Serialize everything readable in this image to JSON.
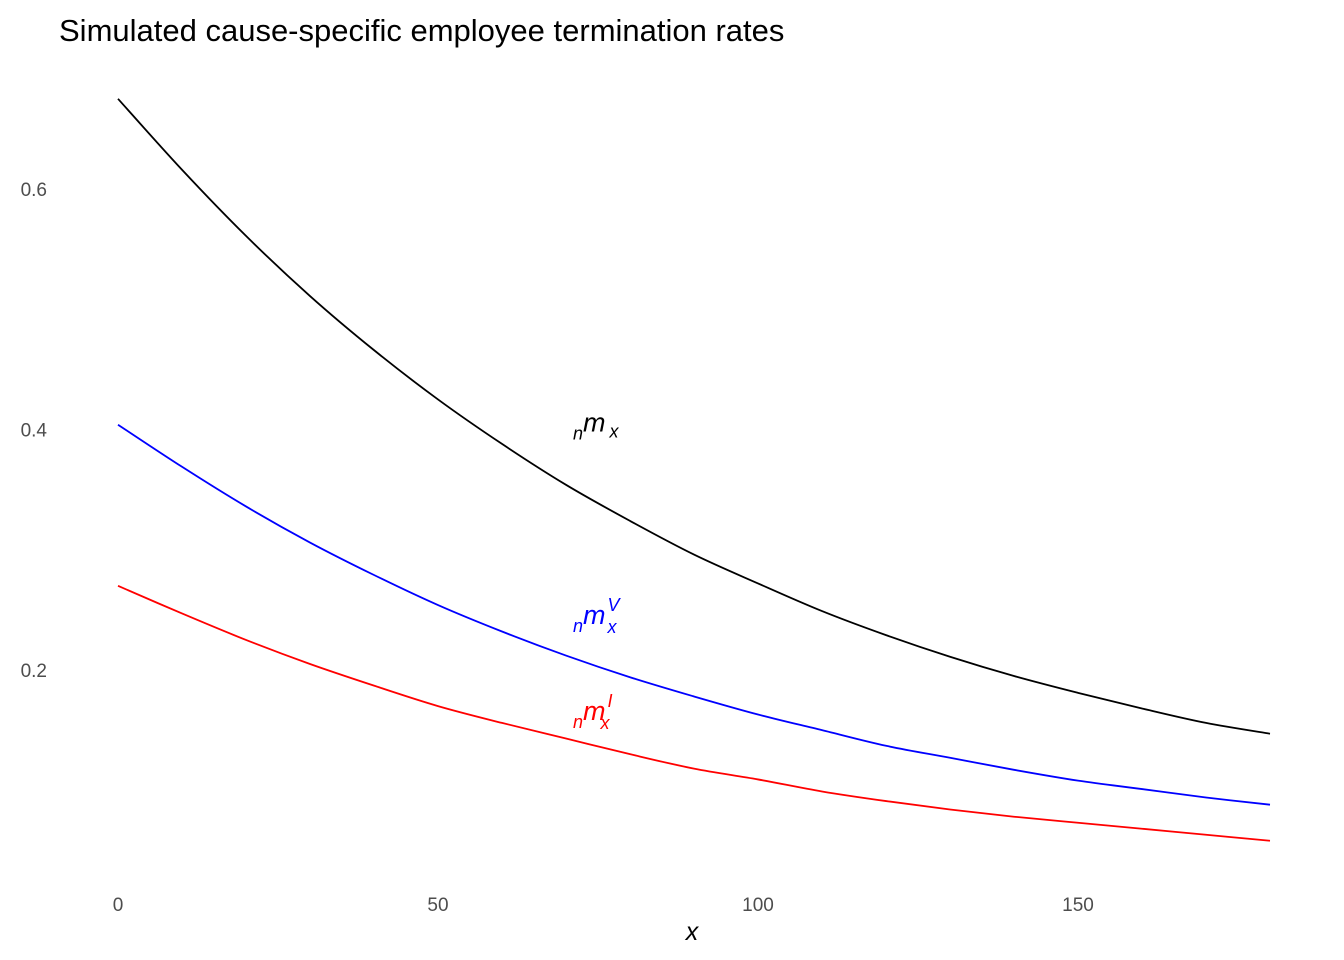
{
  "chart_data": {
    "type": "line",
    "title": "Simulated cause-specific employee termination rates",
    "xlabel": "x",
    "ylabel": "",
    "xlim": [
      0,
      180
    ],
    "ylim": [
      0.05,
      0.7
    ],
    "x_ticks": [
      0,
      50,
      100,
      150
    ],
    "x_tick_labels": [
      "0",
      "50",
      "100",
      "150"
    ],
    "y_ticks": [
      0.2,
      0.4,
      0.6
    ],
    "y_tick_labels": [
      "0.2",
      "0.4",
      "0.6"
    ],
    "grid": false,
    "legend": "none",
    "x": [
      0,
      10,
      20,
      30,
      40,
      50,
      60,
      70,
      80,
      90,
      100,
      110,
      120,
      130,
      140,
      150,
      160,
      170,
      180
    ],
    "series": [
      {
        "key": "total",
        "color": "#000000",
        "label": {
          "base": "m",
          "pre_sub": "n",
          "post_sub": "x",
          "post_sup": ""
        },
        "values": [
          0.675,
          0.616,
          0.561,
          0.511,
          0.466,
          0.425,
          0.388,
          0.354,
          0.324,
          0.296,
          0.272,
          0.249,
          0.229,
          0.211,
          0.195,
          0.181,
          0.168,
          0.156,
          0.147
        ]
      },
      {
        "key": "voluntary",
        "color": "#0000ff",
        "label": {
          "base": "m",
          "pre_sub": "n",
          "post_sub": "x",
          "post_sup": "V"
        },
        "values": [
          0.404,
          0.369,
          0.336,
          0.306,
          0.279,
          0.254,
          0.232,
          0.212,
          0.194,
          0.178,
          0.163,
          0.15,
          0.137,
          0.127,
          0.117,
          0.108,
          0.101,
          0.094,
          0.088
        ]
      },
      {
        "key": "involuntary",
        "color": "#ff0000",
        "label": {
          "base": "m",
          "pre_sub": "n",
          "post_sub": "x",
          "post_sup": "I"
        },
        "values": [
          0.27,
          0.247,
          0.225,
          0.205,
          0.187,
          0.17,
          0.156,
          0.143,
          0.13,
          0.118,
          0.109,
          0.099,
          0.091,
          0.084,
          0.078,
          0.073,
          0.068,
          0.063,
          0.058
        ]
      }
    ],
    "annotations": [
      {
        "series": "total",
        "x": 75,
        "y": 0.4
      },
      {
        "series": "voluntary",
        "x": 75,
        "y": 0.24
      },
      {
        "series": "involuntary",
        "x": 75,
        "y": 0.16
      }
    ]
  }
}
